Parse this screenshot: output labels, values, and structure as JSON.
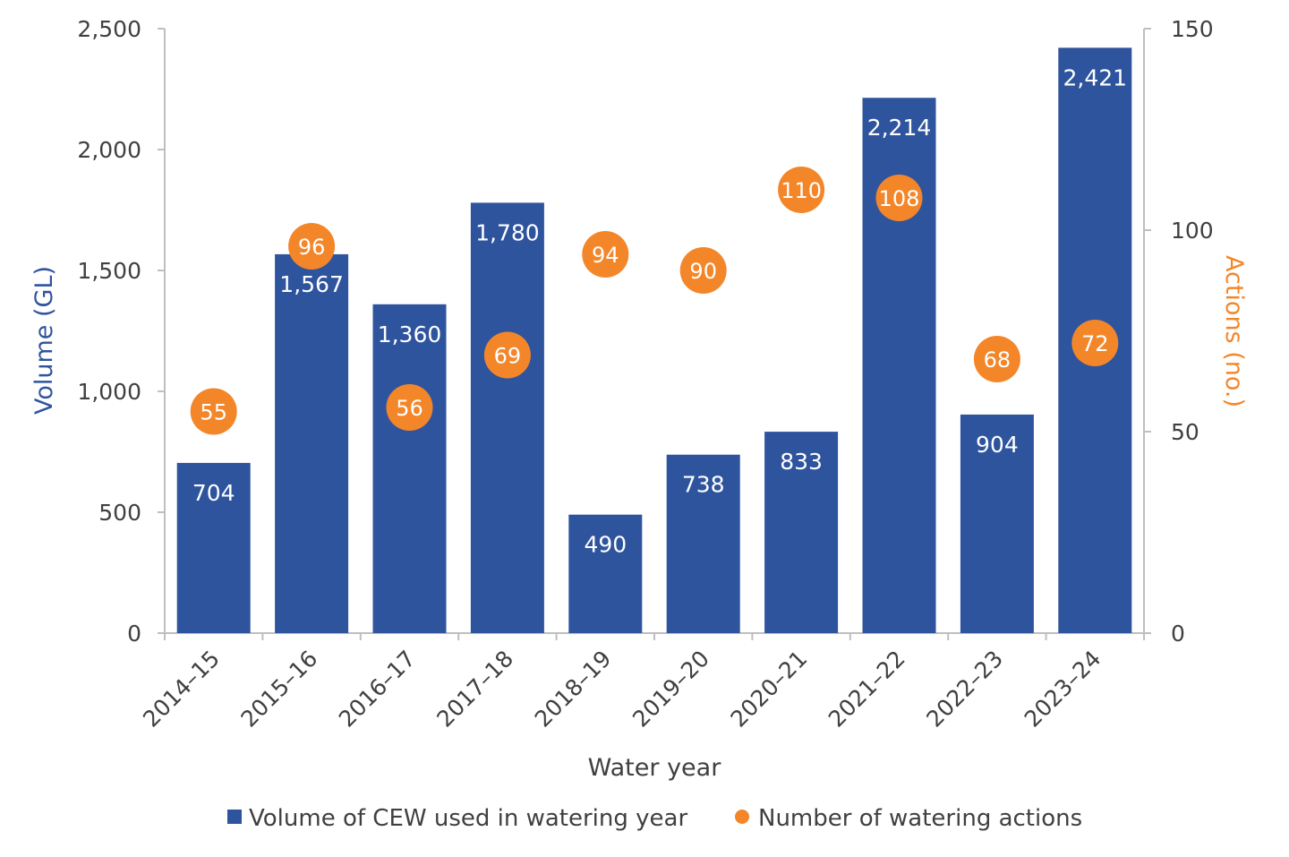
{
  "colors": {
    "bar": "#2F549E",
    "dot": "#F4862A",
    "axis": "#BFBFBF",
    "text": "#404040"
  },
  "chart_data": {
    "type": "bar",
    "categories": [
      "2014–15",
      "2015–16",
      "2016–17",
      "2017–18",
      "2018–19",
      "2019–20",
      "2020–21",
      "2021–22",
      "2022–23",
      "2023–24"
    ],
    "series": [
      {
        "name": "Volume of CEW used in watering year",
        "type": "bar",
        "axis": "left",
        "values": [
          704,
          1567,
          1360,
          1780,
          490,
          738,
          833,
          2214,
          904,
          2421
        ],
        "labels": [
          "704",
          "1,567",
          "1,360",
          "1,780",
          "490",
          "738",
          "833",
          "2,214",
          "904",
          "2,421"
        ]
      },
      {
        "name": "Number of watering actions",
        "type": "scatter",
        "axis": "right",
        "values": [
          55,
          96,
          56,
          69,
          94,
          90,
          110,
          108,
          68,
          72
        ],
        "labels": [
          "55",
          "96",
          "56",
          "69",
          "94",
          "90",
          "110",
          "108",
          "68",
          "72"
        ]
      }
    ],
    "xlabel": "Water year",
    "ylabel": "Volume (GL)",
    "y2label": "Actions (no.)",
    "ylim": [
      0,
      2500
    ],
    "y2lim": [
      0,
      150
    ],
    "yticks": [
      "0",
      "500",
      "1,000",
      "1,500",
      "2,000",
      "2,500"
    ],
    "y2ticks": [
      "0",
      "50",
      "100",
      "150"
    ],
    "grid": false,
    "legend": "bottom"
  }
}
